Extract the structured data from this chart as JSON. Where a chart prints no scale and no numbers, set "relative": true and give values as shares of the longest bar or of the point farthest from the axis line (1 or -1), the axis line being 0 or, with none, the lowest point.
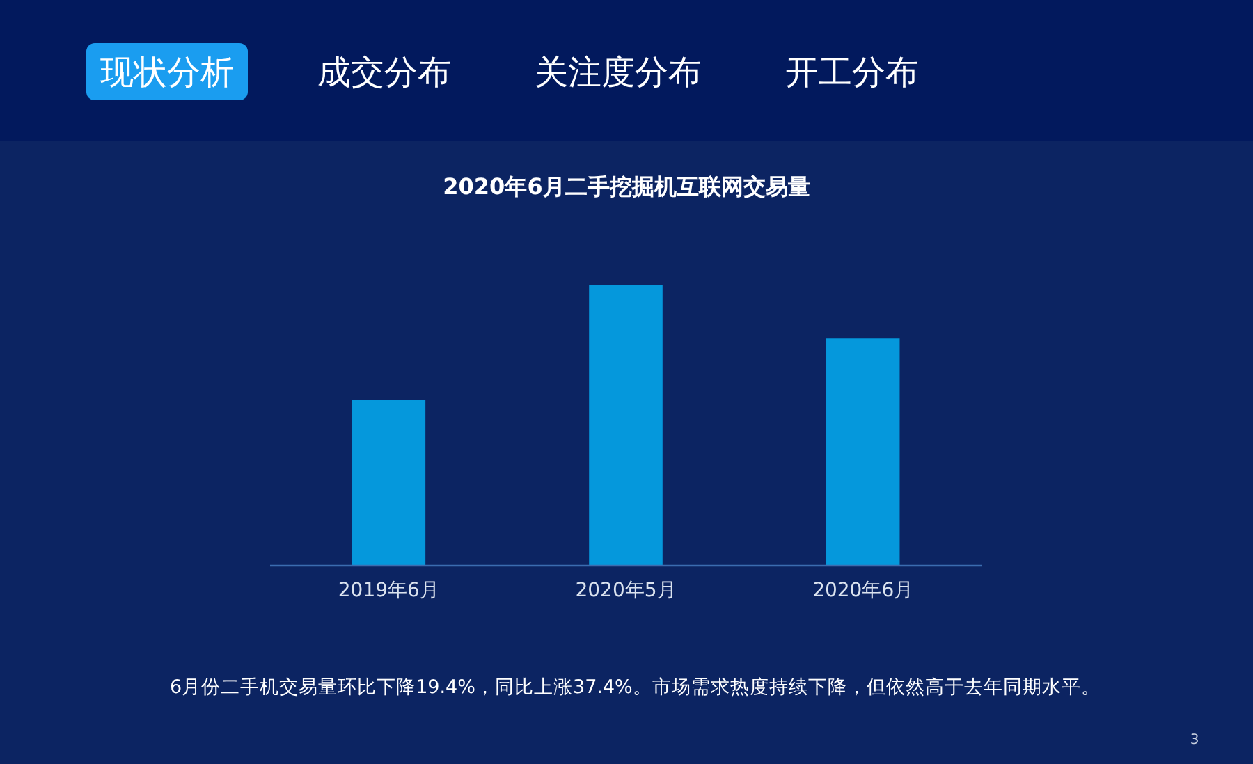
{
  "chart_data": {
    "type": "bar",
    "title": "2020年6月二手挖掘机互联网交易量",
    "categories": [
      "2019年6月",
      "2020年5月",
      "2020年6月"
    ],
    "values": [
      0.59,
      1,
      0.81
    ],
    "color": "#0598dc",
    "relative": true,
    "annotations": [
      "现状分析",
      "成交分布",
      "关注度分布",
      "开工分布",
      "6月份二手机交易量环比下降19.4%，同比上涨37.4%。市场需求热度持续下降，但依然高于去年同期水平。",
      "3"
    ]
  }
}
